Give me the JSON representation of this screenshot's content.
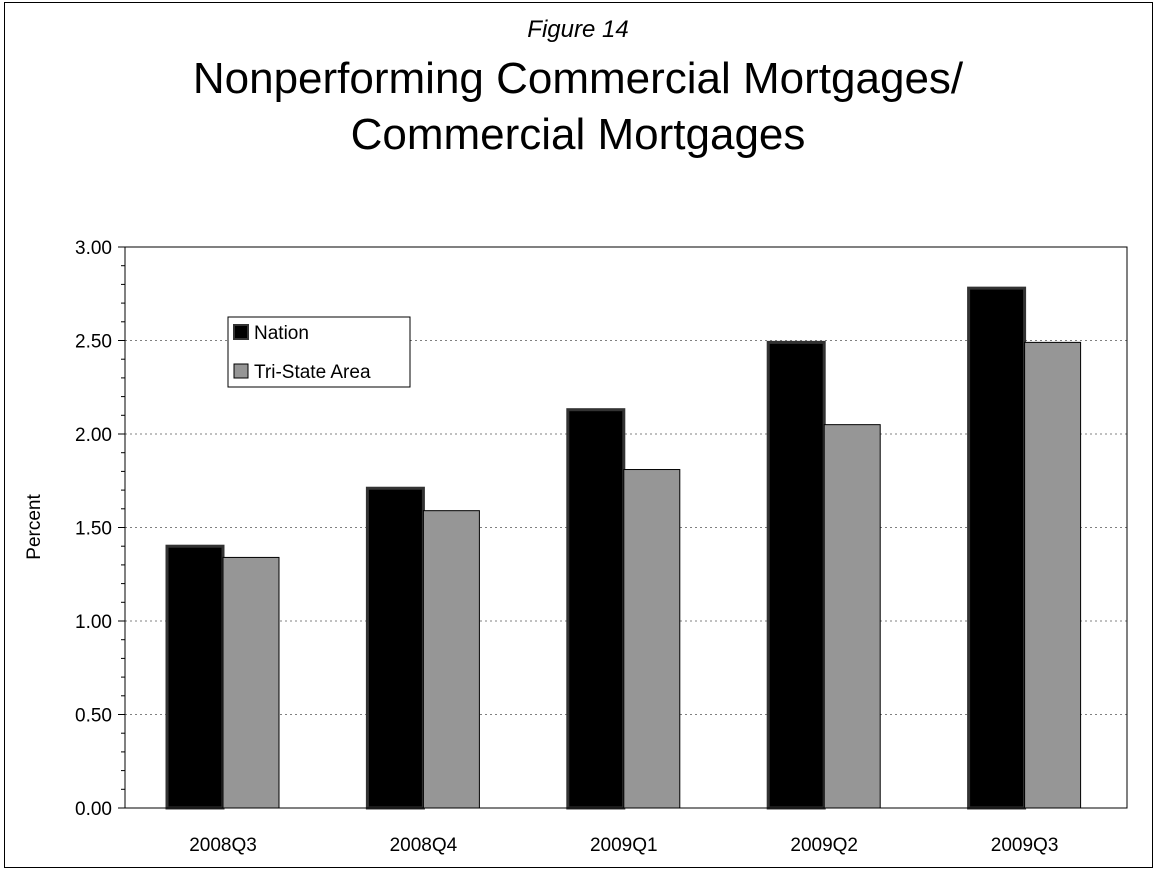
{
  "figure_label": "Figure 14",
  "title_line1": "Nonperforming Commercial Mortgages/",
  "title_line2": "Commercial Mortgages",
  "colors": {
    "nation": "#000000",
    "nation_border": "#333333",
    "tristate": "#969696",
    "grid": "#808080"
  },
  "chart_data": {
    "type": "bar",
    "title": "Nonperforming Commercial Mortgages/ Commercial Mortgages",
    "xlabel": "",
    "ylabel": "Percent",
    "categories": [
      "2008Q3",
      "2008Q4",
      "2009Q1",
      "2009Q2",
      "2009Q3"
    ],
    "series": [
      {
        "name": "Nation",
        "values": [
          1.4,
          1.71,
          2.13,
          2.49,
          2.78
        ]
      },
      {
        "name": "Tri-State Area",
        "values": [
          1.34,
          1.59,
          1.81,
          2.05,
          2.49
        ]
      }
    ],
    "ylim": [
      0,
      3
    ],
    "yticks": [
      "0.00",
      "0.50",
      "1.00",
      "1.50",
      "2.00",
      "2.50",
      "3.00"
    ],
    "grid": "horizontal dotted",
    "legend_position": "top-left inside plot"
  }
}
